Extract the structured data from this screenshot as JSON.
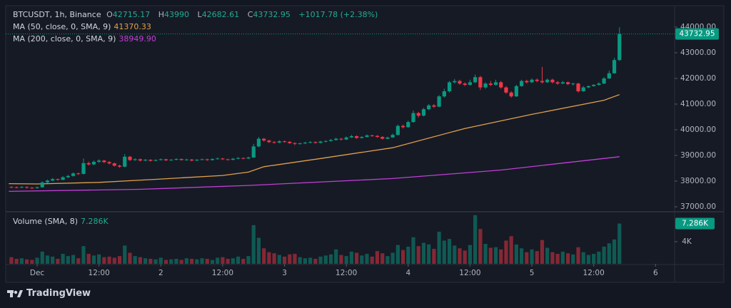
{
  "header": {
    "symbol": "BTCUSDT, 1h, Binance",
    "ohlc": [
      {
        "label": "O",
        "value": 42715.17
      },
      {
        "label": "H",
        "value": 43990.0
      },
      {
        "label": "L",
        "value": 42682.61
      },
      {
        "label": "C",
        "value": 43732.95
      }
    ],
    "change": "+1017.78 (+2.38%)"
  },
  "chart_data": {
    "type": "candlestick",
    "up_color": "#089981",
    "down_color": "#f23645",
    "grid": false,
    "xlim": [
      -6.1,
      123.7
    ],
    "xticks": [
      {
        "value": 0,
        "label": "Dec"
      },
      {
        "value": 12,
        "label": "12:00"
      },
      {
        "value": 24,
        "label": "2"
      },
      {
        "value": 36,
        "label": "12:00"
      },
      {
        "value": 48,
        "label": "3"
      },
      {
        "value": 60,
        "label": "12:00"
      },
      {
        "value": 72,
        "label": "4"
      },
      {
        "value": 84,
        "label": "12:00"
      },
      {
        "value": 96,
        "label": "5"
      },
      {
        "value": 108,
        "label": "12:00"
      },
      {
        "value": 120,
        "label": "6"
      }
    ],
    "ylim": [
      36833,
      44778
    ],
    "yticks": [
      {
        "value": 37000,
        "label": "37000.00"
      },
      {
        "value": 38000,
        "label": "38000.00"
      },
      {
        "value": 39000,
        "label": "39000.00"
      },
      {
        "value": 40000,
        "label": "40000.00"
      },
      {
        "value": 41000,
        "label": "41000.00"
      },
      {
        "value": 42000,
        "label": "42000.00"
      },
      {
        "value": 43000,
        "label": "43000.00"
      },
      {
        "value": 44000,
        "label": "44000.00"
      }
    ],
    "last_price": 43732.95,
    "x": [
      -5,
      -4,
      -3,
      -2,
      -1,
      0,
      1,
      2,
      3,
      4,
      5,
      6,
      7,
      8,
      9,
      10,
      11,
      12,
      13,
      14,
      15,
      16,
      17,
      18,
      19,
      20,
      21,
      22,
      23,
      24,
      25,
      26,
      27,
      28,
      29,
      30,
      31,
      32,
      33,
      34,
      35,
      36,
      37,
      38,
      39,
      40,
      41,
      42,
      43,
      44,
      45,
      46,
      47,
      48,
      49,
      50,
      51,
      52,
      53,
      54,
      55,
      56,
      57,
      58,
      59,
      60,
      61,
      62,
      63,
      64,
      65,
      66,
      67,
      68,
      69,
      70,
      71,
      72,
      73,
      74,
      75,
      76,
      77,
      78,
      79,
      80,
      81,
      82,
      83,
      84,
      85,
      86,
      87,
      88,
      89,
      90,
      91,
      92,
      93,
      94,
      95,
      96,
      97,
      98,
      99,
      100,
      101,
      102,
      103,
      104,
      105,
      106,
      107,
      108,
      109,
      110,
      111,
      112,
      113
    ],
    "candles": [
      [
        37770,
        37800,
        37730,
        37760
      ],
      [
        37760,
        37790,
        37720,
        37750
      ],
      [
        37750,
        37800,
        37730,
        37770
      ],
      [
        37770,
        37790,
        37710,
        37740
      ],
      [
        37740,
        37770,
        37700,
        37730
      ],
      [
        37730,
        37790,
        37700,
        37760
      ],
      [
        37760,
        37990,
        37740,
        37950
      ],
      [
        37950,
        38060,
        37920,
        38020
      ],
      [
        38020,
        38120,
        37990,
        38080
      ],
      [
        38080,
        38100,
        38010,
        38050
      ],
      [
        38050,
        38190,
        38030,
        38150
      ],
      [
        38150,
        38240,
        38110,
        38200
      ],
      [
        38200,
        38340,
        38170,
        38300
      ],
      [
        38300,
        38330,
        38240,
        38280
      ],
      [
        38280,
        38880,
        38260,
        38700
      ],
      [
        38700,
        38760,
        38610,
        38650
      ],
      [
        38650,
        38800,
        38620,
        38750
      ],
      [
        38750,
        38850,
        38710,
        38800
      ],
      [
        38800,
        38830,
        38700,
        38740
      ],
      [
        38740,
        38780,
        38650,
        38690
      ],
      [
        38690,
        38720,
        38570,
        38600
      ],
      [
        38600,
        38640,
        38520,
        38560
      ],
      [
        38560,
        39050,
        38540,
        38950
      ],
      [
        38950,
        38980,
        38780,
        38820
      ],
      [
        38820,
        38890,
        38790,
        38850
      ],
      [
        38850,
        38880,
        38760,
        38800
      ],
      [
        38800,
        38860,
        38770,
        38830
      ],
      [
        38830,
        38850,
        38760,
        38790
      ],
      [
        38790,
        38850,
        38770,
        38820
      ],
      [
        38820,
        38880,
        38800,
        38850
      ],
      [
        38850,
        38870,
        38780,
        38810
      ],
      [
        38810,
        38860,
        38790,
        38830
      ],
      [
        38830,
        38890,
        38810,
        38860
      ],
      [
        38860,
        38880,
        38800,
        38820
      ],
      [
        38820,
        38870,
        38800,
        38840
      ],
      [
        38840,
        38860,
        38770,
        38800
      ],
      [
        38800,
        38860,
        38780,
        38830
      ],
      [
        38830,
        38880,
        38810,
        38850
      ],
      [
        38850,
        38870,
        38790,
        38820
      ],
      [
        38820,
        38890,
        38800,
        38860
      ],
      [
        38860,
        38920,
        38840,
        38880
      ],
      [
        38880,
        38900,
        38820,
        38850
      ],
      [
        38850,
        38870,
        38800,
        38830
      ],
      [
        38830,
        38900,
        38810,
        38870
      ],
      [
        38870,
        38930,
        38850,
        38900
      ],
      [
        38900,
        38920,
        38850,
        38880
      ],
      [
        38880,
        38950,
        38860,
        38920
      ],
      [
        38920,
        39450,
        38900,
        39350
      ],
      [
        39350,
        39720,
        39320,
        39650
      ],
      [
        39650,
        39680,
        39540,
        39580
      ],
      [
        39580,
        39610,
        39480,
        39520
      ],
      [
        39520,
        39560,
        39460,
        39500
      ],
      [
        39500,
        39590,
        39470,
        39550
      ],
      [
        39550,
        39580,
        39500,
        39530
      ],
      [
        39530,
        39560,
        39450,
        39480
      ],
      [
        39480,
        39510,
        39400,
        39450
      ],
      [
        39450,
        39500,
        39420,
        39470
      ],
      [
        39470,
        39530,
        39440,
        39500
      ],
      [
        39500,
        39560,
        39480,
        39520
      ],
      [
        39520,
        39550,
        39460,
        39490
      ],
      [
        39490,
        39570,
        39470,
        39540
      ],
      [
        39540,
        39590,
        39510,
        39560
      ],
      [
        39560,
        39640,
        39540,
        39600
      ],
      [
        39600,
        39690,
        39580,
        39650
      ],
      [
        39650,
        39680,
        39580,
        39620
      ],
      [
        39620,
        39740,
        39600,
        39700
      ],
      [
        39700,
        39800,
        39680,
        39750
      ],
      [
        39750,
        39780,
        39650,
        39680
      ],
      [
        39680,
        39750,
        39660,
        39720
      ],
      [
        39720,
        39820,
        39700,
        39780
      ],
      [
        39780,
        39810,
        39730,
        39760
      ],
      [
        39760,
        39790,
        39690,
        39720
      ],
      [
        39720,
        39750,
        39620,
        39650
      ],
      [
        39650,
        39730,
        39630,
        39700
      ],
      [
        39700,
        39850,
        39680,
        39800
      ],
      [
        39800,
        40200,
        39780,
        40150
      ],
      [
        40150,
        40200,
        40050,
        40100
      ],
      [
        40100,
        40350,
        40080,
        40300
      ],
      [
        40300,
        40750,
        40280,
        40650
      ],
      [
        40650,
        40700,
        40480,
        40550
      ],
      [
        40550,
        40850,
        40520,
        40800
      ],
      [
        40800,
        41000,
        40760,
        40950
      ],
      [
        40950,
        41000,
        40850,
        40900
      ],
      [
        40900,
        41350,
        40880,
        41300
      ],
      [
        41300,
        41600,
        41250,
        41500
      ],
      [
        41500,
        41900,
        41450,
        41850
      ],
      [
        41850,
        41980,
        41800,
        41900
      ],
      [
        41900,
        41950,
        41750,
        41800
      ],
      [
        41800,
        41850,
        41700,
        41750
      ],
      [
        41750,
        41950,
        41720,
        41850
      ],
      [
        41850,
        42150,
        41820,
        42050
      ],
      [
        42050,
        42100,
        41550,
        41650
      ],
      [
        41650,
        41850,
        41600,
        41800
      ],
      [
        41800,
        41900,
        41700,
        41750
      ],
      [
        41750,
        41950,
        41720,
        41850
      ],
      [
        41850,
        41900,
        41600,
        41650
      ],
      [
        41650,
        41700,
        41400,
        41450
      ],
      [
        41450,
        41500,
        41250,
        41300
      ],
      [
        41300,
        41750,
        41280,
        41700
      ],
      [
        41700,
        41950,
        41680,
        41900
      ],
      [
        41900,
        41950,
        41800,
        41850
      ],
      [
        41850,
        42000,
        41820,
        41950
      ],
      [
        41950,
        42000,
        41850,
        41900
      ],
      [
        41900,
        42450,
        41800,
        41850
      ],
      [
        41850,
        42000,
        41820,
        41950
      ],
      [
        41950,
        41990,
        41800,
        41850
      ],
      [
        41850,
        41900,
        41750,
        41800
      ],
      [
        41800,
        41900,
        41780,
        41850
      ],
      [
        41850,
        41880,
        41740,
        41780
      ],
      [
        41780,
        41830,
        41720,
        41800
      ],
      [
        41800,
        41830,
        41450,
        41500
      ],
      [
        41500,
        41700,
        41480,
        41650
      ],
      [
        41650,
        41720,
        41620,
        41700
      ],
      [
        41700,
        41780,
        41680,
        41750
      ],
      [
        41750,
        41850,
        41720,
        41800
      ],
      [
        41800,
        42050,
        41780,
        42000
      ],
      [
        42000,
        42300,
        41980,
        42200
      ],
      [
        42200,
        42800,
        42180,
        42715.17
      ],
      [
        42715.17,
        43990,
        42682.61,
        43732.95
      ]
    ],
    "series": [
      {
        "name": "MA (50, close, 0, SMA, 9)",
        "color": "#e0a04a",
        "legend_value": "41370.33",
        "x": [
          -5.5,
          0,
          12,
          24,
          36,
          41,
          44,
          55,
          69,
          83,
          96,
          110,
          113
        ],
        "values": [
          37900,
          37890,
          37950,
          38080,
          38220,
          38350,
          38560,
          38880,
          39300,
          40050,
          40600,
          41150,
          41370.33
        ]
      },
      {
        "name": "MA (200, close, 0, SMA, 9)",
        "color": "#c23fd6",
        "legend_value": "38949.90",
        "x": [
          -5.5,
          20,
          41,
          69,
          90,
          113
        ],
        "values": [
          37600,
          37680,
          37830,
          38100,
          38430,
          38949.9
        ]
      }
    ],
    "volume": {
      "title": "Volume (SMA, 8)",
      "value_label": "7.286K",
      "ylim": [
        0,
        9030
      ],
      "yticks": [
        {
          "value": 4000,
          "label": "4K"
        }
      ],
      "values": [
        1200,
        900,
        1000,
        800,
        700,
        1100,
        2200,
        1500,
        1300,
        900,
        1800,
        1400,
        1600,
        1000,
        3200,
        1800,
        1500,
        1700,
        1200,
        1300,
        1100,
        1400,
        3300,
        2000,
        1400,
        1200,
        1000,
        900,
        800,
        1100,
        700,
        800,
        900,
        700,
        1000,
        900,
        800,
        1000,
        900,
        700,
        1100,
        1200,
        900,
        1000,
        1300,
        900,
        1400,
        7000,
        4700,
        2800,
        2100,
        1900,
        1600,
        1300,
        1700,
        1800,
        1200,
        1000,
        1100,
        900,
        1300,
        1500,
        1700,
        2600,
        1600,
        1400,
        2200,
        2000,
        1500,
        1800,
        1300,
        2300,
        1900,
        1400,
        2000,
        3400,
        2500,
        3100,
        4800,
        3200,
        3800,
        3500,
        2700,
        5800,
        4200,
        4500,
        3300,
        2800,
        2400,
        3400,
        8800,
        6300,
        3600,
        2900,
        3000,
        2600,
        4200,
        5000,
        3500,
        2800,
        2100,
        2600,
        2300,
        4300,
        2900,
        2100,
        1800,
        2200,
        1900,
        1700,
        3000,
        2100,
        1600,
        1800,
        2200,
        3100,
        3700,
        4400,
        7286
      ]
    }
  },
  "footer": {
    "brand": "TradingView"
  }
}
